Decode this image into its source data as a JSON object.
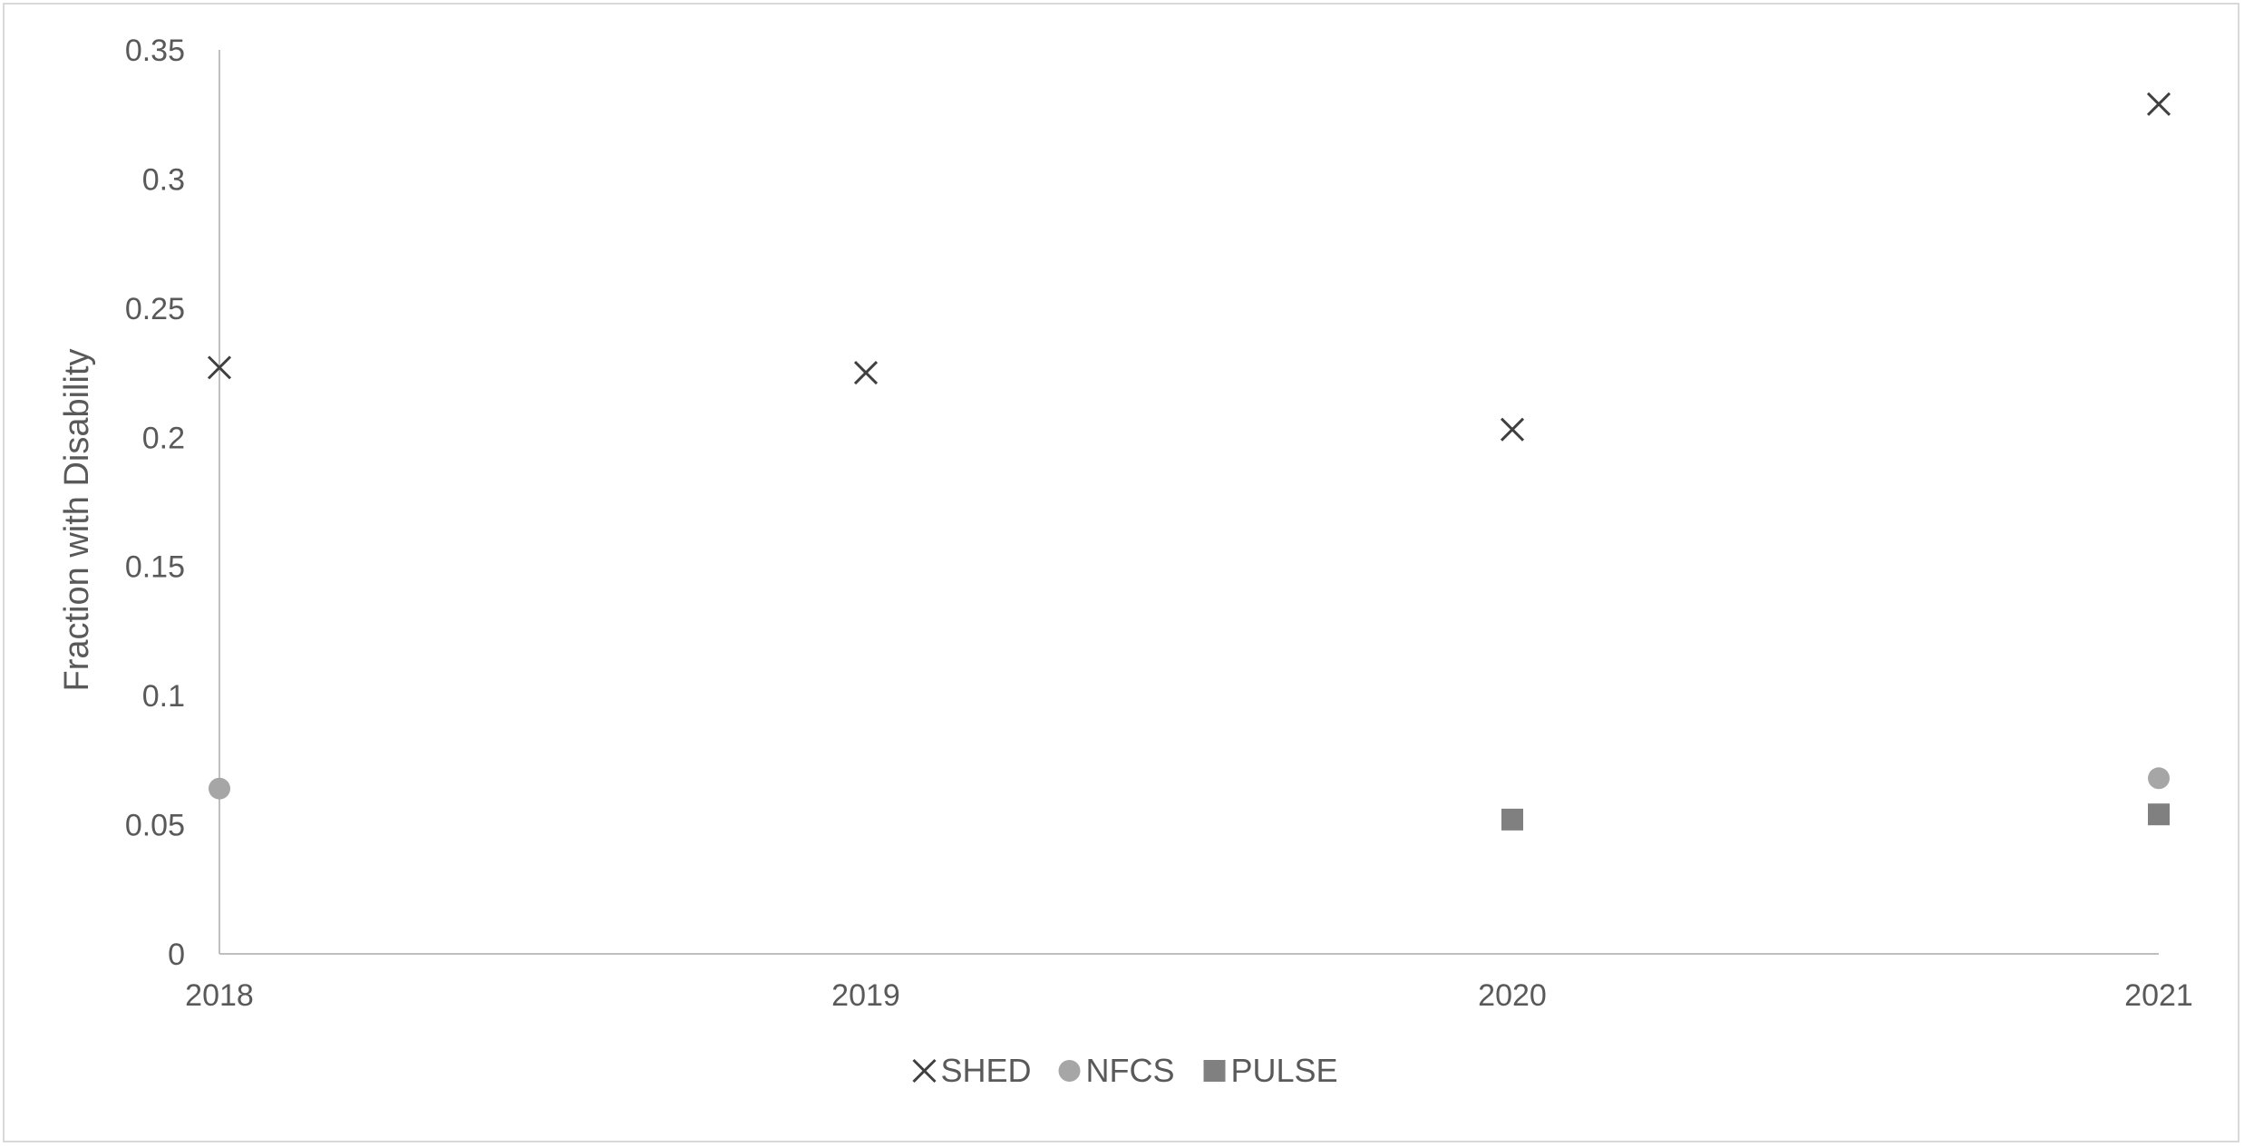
{
  "chart_data": {
    "type": "scatter",
    "title": "",
    "xlabel": "",
    "ylabel": "Fraction with Disability",
    "x_ticks": [
      "2018",
      "2019",
      "2020",
      "2021"
    ],
    "y_ticks": [
      "0",
      "0.05",
      "0.1",
      "0.15",
      "0.2",
      "0.25",
      "0.3",
      "0.35"
    ],
    "xlim": [
      2018,
      2021
    ],
    "ylim": [
      0,
      0.35
    ],
    "grid": false,
    "legend_position": "bottom",
    "series": [
      {
        "name": "SHED",
        "marker": "x",
        "color": "#404040",
        "points": [
          {
            "x": 2018,
            "y": 0.227
          },
          {
            "x": 2019,
            "y": 0.225
          },
          {
            "x": 2020,
            "y": 0.203
          },
          {
            "x": 2021,
            "y": 0.329
          }
        ]
      },
      {
        "name": "NFCS",
        "marker": "circle",
        "color": "#a6a6a6",
        "points": [
          {
            "x": 2018,
            "y": 0.064
          },
          {
            "x": 2021,
            "y": 0.068
          }
        ]
      },
      {
        "name": "PULSE",
        "marker": "square",
        "color": "#808080",
        "points": [
          {
            "x": 2020,
            "y": 0.052
          },
          {
            "x": 2021,
            "y": 0.054
          }
        ]
      }
    ]
  }
}
